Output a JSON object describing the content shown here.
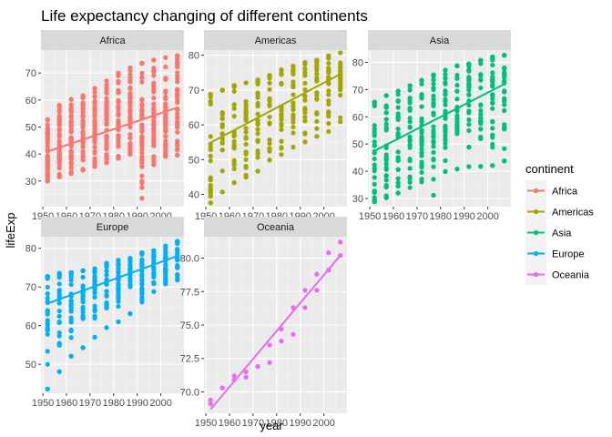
{
  "chart_data": {
    "type": "scatter",
    "title": "Life expectancy  changing of different continents",
    "xlabel": "year",
    "ylabel": "lifeExp",
    "x_ticks": [
      1950,
      1960,
      1970,
      1980,
      1990,
      2000
    ],
    "years": [
      1952,
      1957,
      1962,
      1967,
      1972,
      1977,
      1982,
      1987,
      1992,
      1997,
      2002,
      2007
    ],
    "legend": {
      "title": "continent",
      "placement": "right"
    },
    "grid": true,
    "panels": [
      {
        "name": "Africa",
        "color": "#F8766D",
        "xlim": [
          1949.2,
          2009.8
        ],
        "ylim": [
          20.5,
          78.5
        ],
        "y_ticks": [
          30,
          40,
          50,
          60,
          70
        ],
        "ranges": [
          [
            30.0,
            52.7
          ],
          [
            31.6,
            58.1
          ],
          [
            32.8,
            60.2
          ],
          [
            34.1,
            61.6
          ],
          [
            35.4,
            64.3
          ],
          [
            36.8,
            67.1
          ],
          [
            38.4,
            69.9
          ],
          [
            39.9,
            71.9
          ],
          [
            23.6,
            73.6
          ],
          [
            36.1,
            74.8
          ],
          [
            39.2,
            75.7
          ],
          [
            39.6,
            76.4
          ]
        ],
        "means": [
          39.1,
          41.3,
          43.3,
          45.3,
          47.5,
          49.6,
          51.6,
          53.3,
          53.6,
          53.6,
          53.3,
          54.8
        ],
        "outliers": [
          [
            1992,
            23.6
          ]
        ],
        "fit": [
          [
            1952,
            40.9
          ],
          [
            2007,
            57.2
          ]
        ]
      },
      {
        "name": "Americas",
        "color": "#A3A500",
        "xlim": [
          1949.2,
          2009.8
        ],
        "ylim": [
          36.5,
          81.5
        ],
        "y_ticks": [
          40,
          50,
          60,
          70,
          80
        ],
        "ranges": [
          [
            37.6,
            68.8
          ],
          [
            40.7,
            70.0
          ],
          [
            43.4,
            71.3
          ],
          [
            45.0,
            72.1
          ],
          [
            46.7,
            72.9
          ],
          [
            49.9,
            74.2
          ],
          [
            51.5,
            75.8
          ],
          [
            53.6,
            76.9
          ],
          [
            55.1,
            77.9
          ],
          [
            56.7,
            78.6
          ],
          [
            58.1,
            79.8
          ],
          [
            60.9,
            80.7
          ]
        ],
        "means": [
          53.3,
          56.0,
          58.4,
          60.4,
          62.4,
          64.4,
          66.2,
          68.1,
          69.6,
          71.2,
          72.4,
          73.6
        ],
        "outliers": [],
        "fit": [
          [
            1952,
            54.9
          ],
          [
            2007,
            74.6
          ]
        ]
      },
      {
        "name": "Asia",
        "color": "#00BF7D",
        "xlim": [
          1949.2,
          2009.8
        ],
        "ylim": [
          27.0,
          84.5
        ],
        "y_ticks": [
          30,
          40,
          50,
          60,
          70,
          80
        ],
        "ranges": [
          [
            28.8,
            65.4
          ],
          [
            30.3,
            67.8
          ],
          [
            32.0,
            69.4
          ],
          [
            34.0,
            71.4
          ],
          [
            36.1,
            73.4
          ],
          [
            31.2,
            75.4
          ],
          [
            39.9,
            77.1
          ],
          [
            40.8,
            78.7
          ],
          [
            41.7,
            79.4
          ],
          [
            41.8,
            80.7
          ],
          [
            42.1,
            82.0
          ],
          [
            43.8,
            82.6
          ]
        ],
        "means": [
          46.3,
          49.3,
          51.6,
          54.7,
          57.3,
          59.6,
          62.6,
          64.9,
          66.5,
          68.0,
          69.2,
          70.7
        ],
        "outliers": [
          [
            1977,
            31.2
          ],
          [
            1982,
            39.9
          ],
          [
            1987,
            40.8
          ],
          [
            1992,
            41.7
          ],
          [
            1997,
            41.8
          ],
          [
            2002,
            42.1
          ],
          [
            2007,
            43.8
          ]
        ],
        "fit": [
          [
            1952,
            47.5
          ],
          [
            2007,
            72.0
          ]
        ]
      },
      {
        "name": "Europe",
        "color": "#00B0F6",
        "xlim": [
          1949.2,
          2009.8
        ],
        "ylim": [
          42.5,
          83.0
        ],
        "y_ticks": [
          50,
          60,
          70,
          80
        ],
        "ranges": [
          [
            43.6,
            72.7
          ],
          [
            48.1,
            73.5
          ],
          [
            52.1,
            73.7
          ],
          [
            54.3,
            74.2
          ],
          [
            57.0,
            74.7
          ],
          [
            59.5,
            76.1
          ],
          [
            61.0,
            76.9
          ],
          [
            63.1,
            77.4
          ],
          [
            66.1,
            78.8
          ],
          [
            68.8,
            79.4
          ],
          [
            70.8,
            80.6
          ],
          [
            71.8,
            81.8
          ]
        ],
        "means": [
          64.4,
          66.7,
          68.5,
          69.7,
          70.8,
          71.9,
          72.8,
          73.6,
          74.4,
          75.5,
          76.7,
          77.6
        ],
        "outliers": [
          [
            1952,
            43.6
          ],
          [
            1957,
            48.1
          ],
          [
            1962,
            52.1
          ],
          [
            1967,
            54.3
          ],
          [
            1972,
            57.0
          ],
          [
            1977,
            59.5
          ],
          [
            1982,
            61.0
          ],
          [
            1987,
            63.1
          ]
        ],
        "fit": [
          [
            1952,
            65.7
          ],
          [
            2007,
            78.0
          ]
        ]
      },
      {
        "name": "Oceania",
        "color": "#E76BF3",
        "xlim": [
          1949.2,
          2009.8
        ],
        "ylim": [
          68.4,
          81.6
        ],
        "y_ticks": [
          70.0,
          72.5,
          75.0,
          77.5,
          80.0
        ],
        "points": [
          [
            1952,
            69.1
          ],
          [
            1952,
            69.4
          ],
          [
            1957,
            70.3
          ],
          [
            1957,
            70.3
          ],
          [
            1962,
            70.9
          ],
          [
            1962,
            71.2
          ],
          [
            1967,
            71.1
          ],
          [
            1967,
            71.5
          ],
          [
            1972,
            71.9
          ],
          [
            1972,
            71.9
          ],
          [
            1977,
            72.2
          ],
          [
            1977,
            73.5
          ],
          [
            1982,
            73.8
          ],
          [
            1982,
            74.7
          ],
          [
            1987,
            74.3
          ],
          [
            1987,
            76.3
          ],
          [
            1992,
            76.3
          ],
          [
            1992,
            77.6
          ],
          [
            1997,
            77.6
          ],
          [
            1997,
            78.8
          ],
          [
            2002,
            79.1
          ],
          [
            2002,
            80.4
          ],
          [
            2007,
            80.2
          ],
          [
            2007,
            81.2
          ]
        ],
        "fit": [
          [
            1952,
            68.7
          ],
          [
            2007,
            80.2
          ]
        ]
      }
    ]
  }
}
